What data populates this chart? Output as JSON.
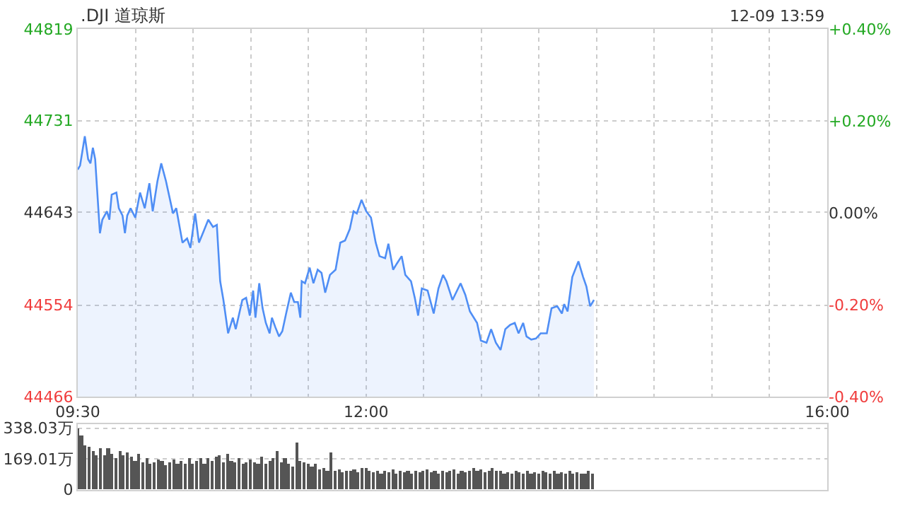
{
  "chart_data": [
    {
      "type": "area",
      "title": ".DJI 道琼斯",
      "annotations": [
        "12-09 13:59"
      ],
      "x": [
        9.5,
        9.52,
        9.561,
        9.59,
        9.61,
        9.631,
        9.651,
        9.692,
        9.713,
        9.753,
        9.774,
        9.794,
        9.835,
        9.856,
        9.888,
        9.909,
        9.929,
        9.958,
        9.999,
        10.04,
        10.081,
        10.121,
        10.15,
        10.191,
        10.224,
        10.265,
        10.326,
        10.354,
        10.408,
        10.448,
        10.477,
        10.518,
        10.551,
        10.592,
        10.632,
        10.673,
        10.706,
        10.735,
        10.763,
        10.804,
        10.845,
        10.87,
        10.927,
        10.96,
        10.992,
        11.021,
        11.041,
        11.074,
        11.103,
        11.131,
        11.164,
        11.184,
        11.213,
        11.246,
        11.274,
        11.307,
        11.348,
        11.377,
        11.409,
        11.43,
        11.442,
        11.471,
        11.511,
        11.544,
        11.581,
        11.614,
        11.646,
        11.687,
        11.736,
        11.777,
        11.818,
        11.859,
        11.892,
        11.92,
        11.961,
        12.002,
        12.043,
        12.084,
        12.117,
        12.166,
        12.194,
        12.235,
        12.268,
        12.309,
        12.341,
        12.39,
        12.423,
        12.452,
        12.484,
        12.534,
        12.587,
        12.628,
        12.668,
        12.697,
        12.75,
        12.82,
        12.861,
        12.901,
        12.963,
        12.996,
        13.045,
        13.085,
        13.126,
        13.167,
        13.208,
        13.249,
        13.29,
        13.323,
        13.363,
        13.392,
        13.433,
        13.474,
        13.515,
        13.568,
        13.609,
        13.658,
        13.699,
        13.719,
        13.748,
        13.789,
        13.842,
        13.883,
        13.911,
        13.944,
        13.977
      ],
      "series": [
        {
          "color": "#4f8ef5",
          "values": [
            44684,
            44688,
            44716,
            44694,
            44690,
            44705,
            44694,
            44623,
            44636,
            44644,
            44636,
            44660,
            44662,
            44647,
            44640,
            44623,
            44640,
            44647,
            44638,
            44662,
            44647,
            44671,
            44644,
            44673,
            44690,
            44673,
            44642,
            44647,
            44614,
            44618,
            44609,
            44642,
            44614,
            44625,
            44636,
            44629,
            44631,
            44577,
            44559,
            44527,
            44542,
            44531,
            44559,
            44561,
            44544,
            44568,
            44542,
            44575,
            44551,
            44537,
            44527,
            44542,
            44533,
            44524,
            44529,
            44546,
            44566,
            44557,
            44557,
            44542,
            44577,
            44575,
            44590,
            44575,
            44588,
            44585,
            44566,
            44583,
            44588,
            44614,
            44616,
            44627,
            44644,
            44642,
            44655,
            44644,
            44638,
            44614,
            44601,
            44599,
            44613,
            44588,
            44594,
            44601,
            44583,
            44577,
            44561,
            44544,
            44570,
            44568,
            44546,
            44570,
            44583,
            44577,
            44559,
            44575,
            44564,
            44548,
            44537,
            44520,
            44518,
            44531,
            44518,
            44511,
            44531,
            44535,
            44537,
            44527,
            44537,
            44524,
            44521,
            44522,
            44527,
            44527,
            44551,
            44553,
            44546,
            44555,
            44548,
            44581,
            44596,
            44581,
            44572,
            44553,
            44559
          ]
        }
      ],
      "xlim": [
        9.5,
        16
      ],
      "xticks": [
        {
          "value": 9.5,
          "label": "09:30"
        },
        {
          "value": 10,
          "label": null
        },
        {
          "value": 10.5,
          "label": null
        },
        {
          "value": 11,
          "label": null
        },
        {
          "value": 11.5,
          "label": null
        },
        {
          "value": 12,
          "label": "12:00"
        },
        {
          "value": 12.5,
          "label": null
        },
        {
          "value": 13,
          "label": null
        },
        {
          "value": 13.5,
          "label": null
        },
        {
          "value": 14,
          "label": null
        },
        {
          "value": 14.5,
          "label": null
        },
        {
          "value": 15,
          "label": null
        },
        {
          "value": 15.5,
          "label": null
        },
        {
          "value": 16,
          "label": "16:00"
        }
      ],
      "ylim": [
        44466,
        44819
      ],
      "yticks": [
        44466,
        44554,
        44643,
        44731,
        44819
      ],
      "y2lim": [
        -0.4,
        0.4
      ],
      "y2ticks": [
        {
          "value": -0.4,
          "label": "-0.40%"
        },
        {
          "value": -0.2,
          "label": "-0.20%"
        },
        {
          "value": 0,
          "label": "0.00%"
        },
        {
          "value": 0.2,
          "label": "+0.20%"
        },
        {
          "value": 0.4,
          "label": "+0.40%"
        }
      ],
      "grid": true,
      "line_style": "solid"
    },
    {
      "type": "bar",
      "tick_labels": "y",
      "grid": "y",
      "x": [
        9.5,
        9.533,
        9.567,
        9.6,
        9.633,
        9.667,
        9.7,
        9.733,
        9.767,
        9.8,
        9.833,
        9.867,
        9.9,
        9.933,
        9.967,
        10,
        10.033,
        10.067,
        10.1,
        10.133,
        10.167,
        10.2,
        10.233,
        10.267,
        10.3,
        10.333,
        10.367,
        10.4,
        10.433,
        10.467,
        10.5,
        10.533,
        10.567,
        10.6,
        10.633,
        10.667,
        10.7,
        10.733,
        10.767,
        10.8,
        10.833,
        10.867,
        10.9,
        10.933,
        10.967,
        11,
        11.033,
        11.067,
        11.1,
        11.133,
        11.167,
        11.2,
        11.233,
        11.267,
        11.3,
        11.333,
        11.367,
        11.4,
        11.433,
        11.467,
        11.5,
        11.533,
        11.567,
        11.6,
        11.633,
        11.667,
        11.7,
        11.733,
        11.767,
        11.8,
        11.833,
        11.867,
        11.9,
        11.933,
        11.967,
        12,
        12.033,
        12.067,
        12.1,
        12.133,
        12.167,
        12.2,
        12.233,
        12.267,
        12.3,
        12.333,
        12.367,
        12.4,
        12.433,
        12.467,
        12.5,
        12.533,
        12.567,
        12.6,
        12.633,
        12.667,
        12.7,
        12.733,
        12.767,
        12.8,
        12.833,
        12.867,
        12.9,
        12.933,
        12.967,
        13,
        13.033,
        13.067,
        13.1,
        13.133,
        13.167,
        13.2,
        13.233,
        13.267,
        13.3,
        13.333,
        13.367,
        13.4,
        13.433,
        13.467,
        13.5,
        13.533,
        13.567,
        13.6,
        13.633,
        13.667,
        13.7,
        13.733,
        13.767,
        13.8,
        13.833,
        13.867,
        13.9,
        13.933,
        13.967
      ],
      "series": [
        {
          "color": "#555555",
          "values": [
            338,
            300,
            245,
            237,
            216,
            190,
            230,
            185,
            228,
            200,
            175,
            215,
            190,
            205,
            178,
            160,
            195,
            150,
            170,
            140,
            150,
            165,
            160,
            135,
            150,
            165,
            140,
            155,
            145,
            170,
            140,
            155,
            170,
            145,
            175,
            160,
            180,
            190,
            150,
            200,
            160,
            150,
            175,
            140,
            150,
            165,
            150,
            140,
            180,
            145,
            160,
            170,
            210,
            150,
            175,
            140,
            130,
            260,
            160,
            150,
            140,
            125,
            140,
            110,
            120,
            105,
            207,
            100,
            110,
            95,
            105,
            100,
            110,
            95,
            120,
            120,
            100,
            95,
            105,
            90,
            100,
            95,
            110,
            90,
            100,
            95,
            105,
            90,
            100,
            95,
            100,
            110,
            95,
            100,
            90,
            105,
            95,
            100,
            110,
            90,
            100,
            95,
            105,
            120,
            100,
            110,
            95,
            100,
            115,
            105,
            100,
            90,
            95,
            85,
            100,
            95,
            90,
            100,
            85,
            95,
            90,
            100,
            95,
            85,
            100,
            90,
            95,
            85,
            100,
            90,
            95,
            85,
            90,
            100,
            85
          ]
        }
      ],
      "xlim": [
        9.5,
        16
      ],
      "ylim": [
        0,
        360
      ],
      "yticks": [
        0,
        {
          "value": 169.01,
          "label": "169.01万"
        },
        {
          "value": 338.03,
          "label": "338.03万"
        }
      ]
    }
  ]
}
